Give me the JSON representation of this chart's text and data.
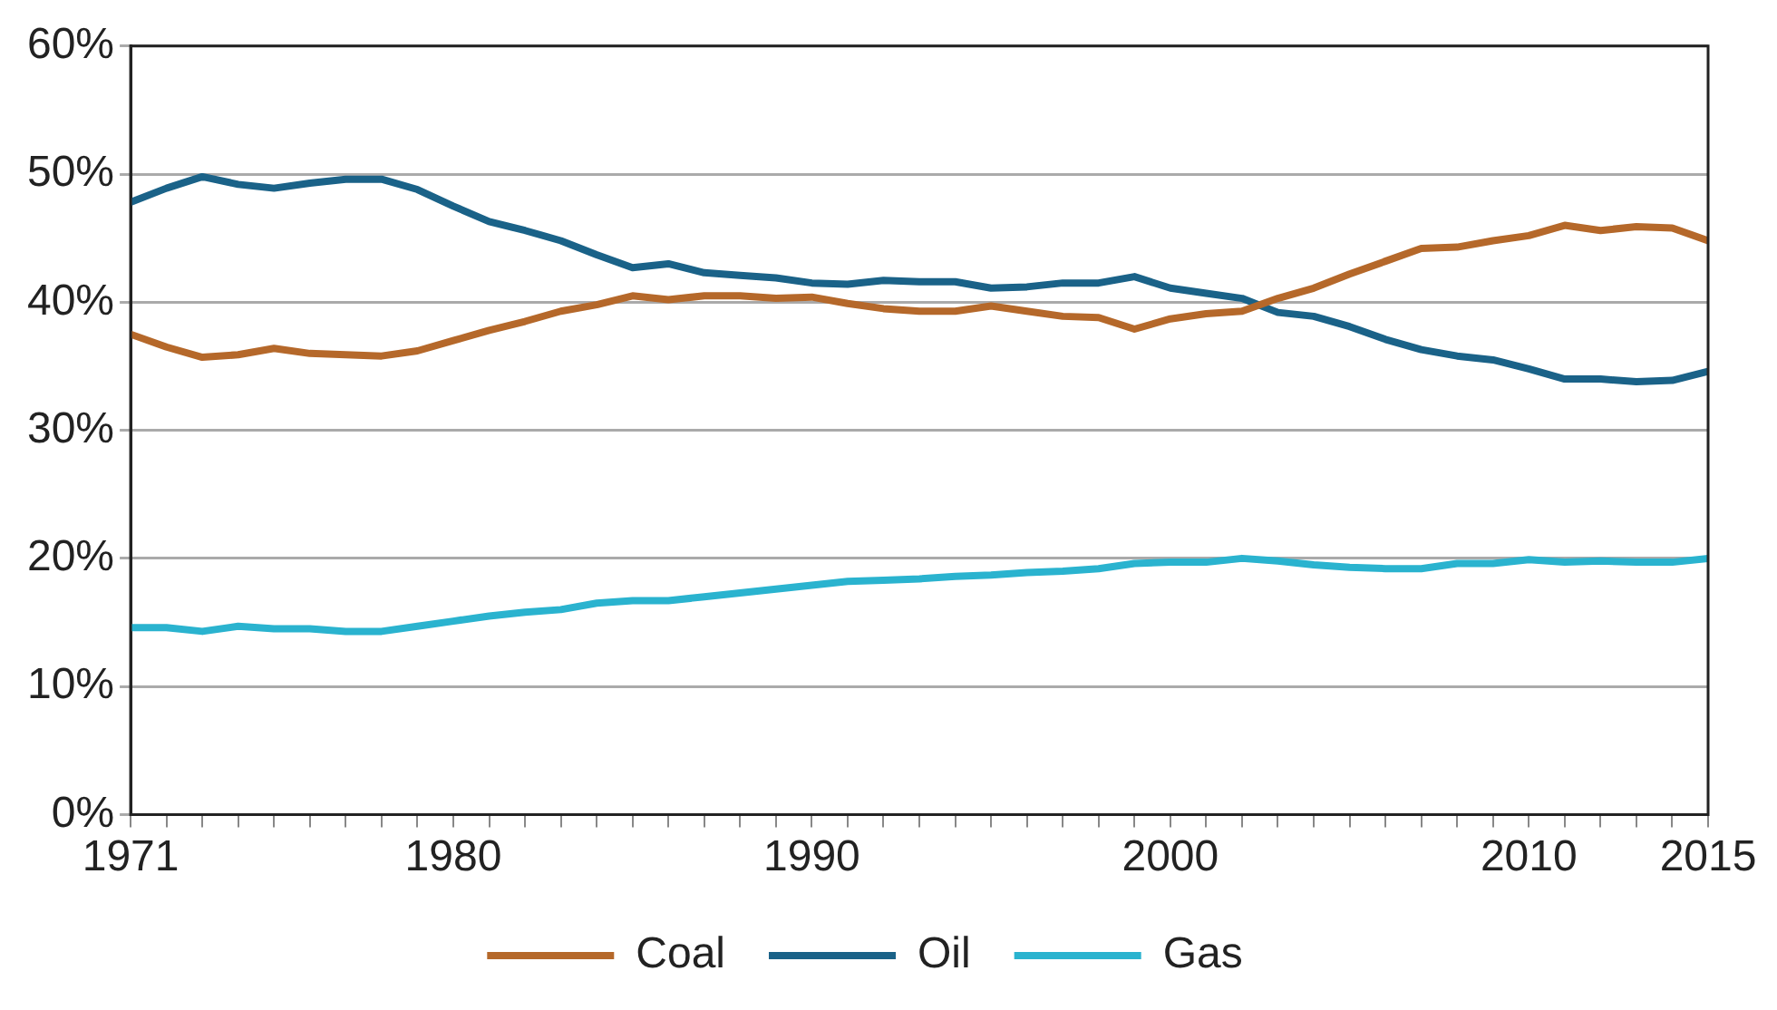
{
  "chart_data": {
    "type": "line",
    "x": [
      1971,
      1972,
      1973,
      1974,
      1975,
      1976,
      1977,
      1978,
      1979,
      1980,
      1981,
      1982,
      1983,
      1984,
      1985,
      1986,
      1987,
      1988,
      1989,
      1990,
      1991,
      1992,
      1993,
      1994,
      1995,
      1996,
      1997,
      1998,
      1999,
      2000,
      2001,
      2002,
      2003,
      2004,
      2005,
      2006,
      2007,
      2008,
      2009,
      2010,
      2011,
      2012,
      2013,
      2014,
      2015
    ],
    "series": [
      {
        "name": "Coal",
        "color": "#b5682a",
        "values": [
          37.5,
          36.5,
          35.7,
          35.9,
          36.4,
          36.0,
          35.9,
          35.8,
          36.2,
          37.0,
          37.8,
          38.5,
          39.3,
          39.8,
          40.5,
          40.2,
          40.5,
          40.5,
          40.3,
          40.4,
          39.9,
          39.5,
          39.3,
          39.3,
          39.7,
          39.3,
          38.9,
          38.8,
          37.9,
          38.7,
          39.1,
          39.3,
          40.3,
          41.1,
          42.2,
          43.2,
          44.2,
          44.3,
          44.8,
          45.2,
          46.0,
          45.6,
          45.9,
          45.8,
          44.8
        ]
      },
      {
        "name": "Oil",
        "color": "#1a6288",
        "values": [
          47.8,
          48.9,
          49.8,
          49.2,
          48.9,
          49.3,
          49.6,
          49.6,
          48.8,
          47.5,
          46.3,
          45.6,
          44.8,
          43.7,
          42.7,
          43.0,
          42.3,
          42.1,
          41.9,
          41.5,
          41.4,
          41.7,
          41.6,
          41.6,
          41.1,
          41.2,
          41.5,
          41.5,
          42.0,
          41.1,
          40.7,
          40.3,
          39.2,
          38.9,
          38.1,
          37.1,
          36.3,
          35.8,
          35.5,
          34.8,
          34.0,
          34.0,
          33.8,
          33.9,
          34.6
        ]
      },
      {
        "name": "Gas",
        "color": "#2ab3cf",
        "values": [
          14.6,
          14.6,
          14.3,
          14.7,
          14.5,
          14.5,
          14.3,
          14.3,
          14.7,
          15.1,
          15.5,
          15.8,
          16.0,
          16.5,
          16.7,
          16.7,
          17.0,
          17.3,
          17.6,
          17.9,
          18.2,
          18.3,
          18.4,
          18.6,
          18.7,
          18.9,
          19.0,
          19.2,
          19.6,
          19.7,
          19.7,
          20.0,
          19.8,
          19.5,
          19.3,
          19.2,
          19.2,
          19.6,
          19.6,
          19.9,
          19.7,
          19.8,
          19.7,
          19.7,
          20.0
        ]
      }
    ],
    "xlim": [
      1971,
      2015
    ],
    "xticks": [
      {
        "value": 1971,
        "label": "1971"
      },
      {
        "value": 1972,
        "label": null
      },
      {
        "value": 1973,
        "label": null
      },
      {
        "value": 1974,
        "label": null
      },
      {
        "value": 1975,
        "label": null
      },
      {
        "value": 1976,
        "label": null
      },
      {
        "value": 1977,
        "label": null
      },
      {
        "value": 1978,
        "label": null
      },
      {
        "value": 1979,
        "label": null
      },
      {
        "value": 1980,
        "label": "1980"
      },
      {
        "value": 1981,
        "label": null
      },
      {
        "value": 1982,
        "label": null
      },
      {
        "value": 1983,
        "label": null
      },
      {
        "value": 1984,
        "label": null
      },
      {
        "value": 1985,
        "label": null
      },
      {
        "value": 1986,
        "label": null
      },
      {
        "value": 1987,
        "label": null
      },
      {
        "value": 1988,
        "label": null
      },
      {
        "value": 1989,
        "label": null
      },
      {
        "value": 1990,
        "label": "1990"
      },
      {
        "value": 1991,
        "label": null
      },
      {
        "value": 1992,
        "label": null
      },
      {
        "value": 1993,
        "label": null
      },
      {
        "value": 1994,
        "label": null
      },
      {
        "value": 1995,
        "label": null
      },
      {
        "value": 1996,
        "label": null
      },
      {
        "value": 1997,
        "label": null
      },
      {
        "value": 1998,
        "label": null
      },
      {
        "value": 1999,
        "label": null
      },
      {
        "value": 2000,
        "label": "2000"
      },
      {
        "value": 2001,
        "label": null
      },
      {
        "value": 2002,
        "label": null
      },
      {
        "value": 2003,
        "label": null
      },
      {
        "value": 2004,
        "label": null
      },
      {
        "value": 2005,
        "label": null
      },
      {
        "value": 2006,
        "label": null
      },
      {
        "value": 2007,
        "label": null
      },
      {
        "value": 2008,
        "label": null
      },
      {
        "value": 2009,
        "label": null
      },
      {
        "value": 2010,
        "label": "2010"
      },
      {
        "value": 2011,
        "label": null
      },
      {
        "value": 2012,
        "label": null
      },
      {
        "value": 2013,
        "label": null
      },
      {
        "value": 2014,
        "label": null
      },
      {
        "value": 2015,
        "label": "2015"
      }
    ],
    "ylim": [
      0,
      60
    ],
    "yticks": [
      {
        "value": 0,
        "label": "0%"
      },
      {
        "value": 10,
        "label": "10%"
      },
      {
        "value": 20,
        "label": "20%"
      },
      {
        "value": 30,
        "label": "30%"
      },
      {
        "value": 40,
        "label": "40%"
      },
      {
        "value": 50,
        "label": "50%"
      },
      {
        "value": 60,
        "label": "60%"
      }
    ],
    "grid": "y",
    "legend": "bottom",
    "marker": "none",
    "line_style": "solid"
  }
}
